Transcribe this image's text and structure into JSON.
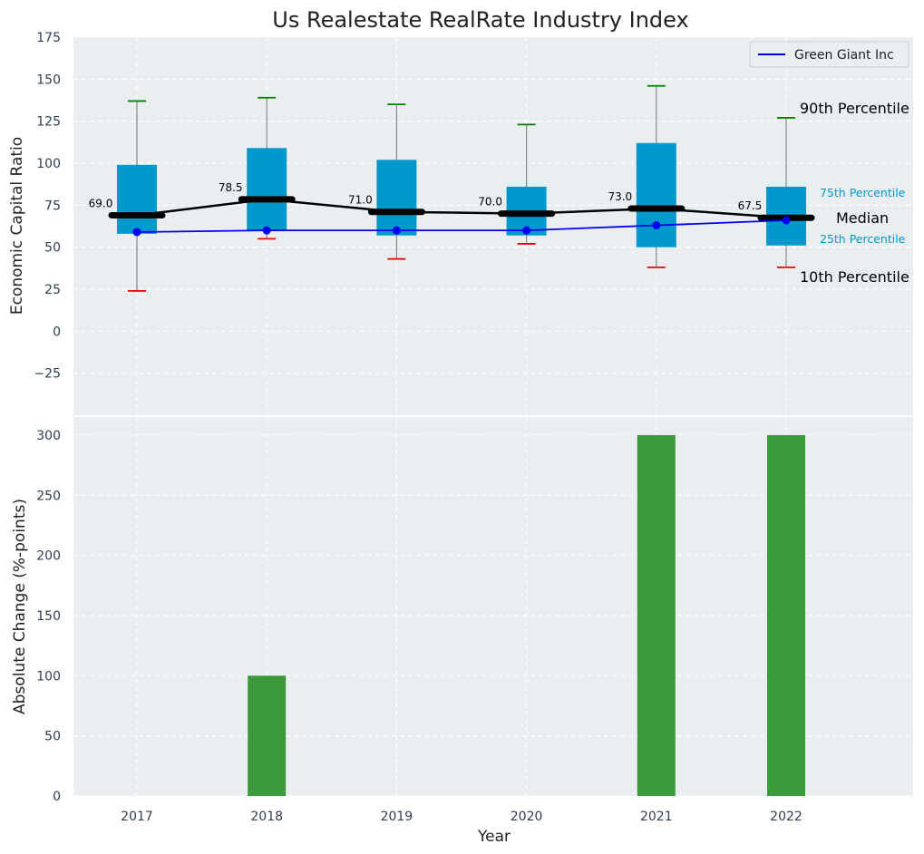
{
  "chart_data": [
    {
      "type": "box",
      "title": "Us Realestate RealRate Industry Index",
      "ylabel": "Economic Capital Ratio",
      "ylim": [
        -50,
        175
      ],
      "yticks": [
        -25,
        0,
        25,
        50,
        75,
        100,
        125,
        150,
        175
      ],
      "ytick_labels": [
        "−25",
        "0",
        "25",
        "50",
        "75",
        "100",
        "125",
        "150",
        "175"
      ],
      "categories": [
        "2017",
        "2018",
        "2019",
        "2020",
        "2021",
        "2022"
      ],
      "p10": [
        24,
        55,
        43,
        52,
        38,
        38
      ],
      "p25": [
        58,
        60,
        57,
        57,
        50,
        51
      ],
      "median": [
        69.0,
        78.5,
        71.0,
        70.0,
        73.0,
        67.5
      ],
      "median_labels": [
        "69.0",
        "78.5",
        "71.0",
        "70.0",
        "73.0",
        "67.5"
      ],
      "p75": [
        99,
        109,
        102,
        86,
        112,
        86
      ],
      "p90": [
        137,
        139,
        135,
        123,
        146,
        127
      ],
      "series": [
        {
          "name": "Green Giant Inc",
          "values": [
            59,
            60,
            60,
            60,
            63,
            66
          ]
        }
      ],
      "legend": "top-right",
      "grid": true,
      "annotations": {
        "p90": "90th Percentile",
        "p75": "75th Percentile",
        "median": "Median",
        "p25": "25th Percentile",
        "p10": "10th Percentile"
      }
    },
    {
      "type": "bar",
      "xlabel": "Year",
      "ylabel": "Absolute Change (%-points)",
      "ylim": [
        0,
        315
      ],
      "yticks": [
        0,
        50,
        100,
        150,
        200,
        250,
        300
      ],
      "categories": [
        "2017",
        "2018",
        "2019",
        "2020",
        "2021",
        "2022"
      ],
      "values": [
        0,
        100,
        0,
        0,
        300,
        300
      ],
      "grid": true
    }
  ],
  "colors": {
    "panel_bg": "#eaeef0",
    "box_fill": "#0099cc",
    "median_line": "#000000",
    "company_line": "#0000ee",
    "p90_cap": "#008000",
    "p10_cap": "#e00000",
    "whisker": "#888888",
    "bar_fill": "#3a9a3c",
    "grid": "#ffffff"
  }
}
